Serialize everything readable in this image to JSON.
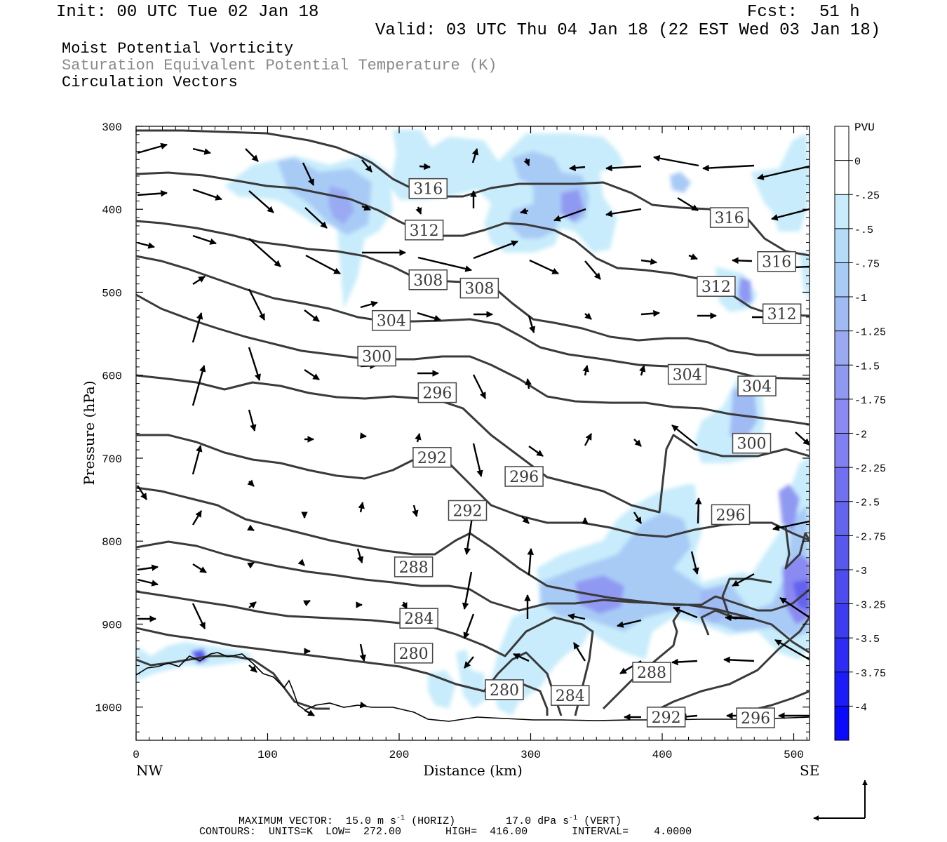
{
  "header": {
    "init": "Init: 00 UTC Tue 02 Jan 18",
    "fcst_label": "Fcst:",
    "fcst_value": "51 h",
    "valid": "Valid: 03 UTC Thu 04 Jan 18 (22 EST Wed 03 Jan 18)"
  },
  "legend_lines": [
    {
      "text": "Moist Potential Vorticity",
      "color": "#000000"
    },
    {
      "text": "Saturation Equivalent Potential Temperature (K)",
      "color": "#8a8a8a"
    },
    {
      "text": "Circulation Vectors",
      "color": "#000000"
    }
  ],
  "chart_data": {
    "type": "contour",
    "xlabel": "Distance (km)",
    "ylabel": "Pressure (hPa)",
    "xlim": [
      0,
      512
    ],
    "ylim": [
      1040,
      300
    ],
    "x_ticks": [
      "0",
      "100",
      "200",
      "300",
      "400",
      "500"
    ],
    "y_ticks": [
      "300",
      "400",
      "500",
      "600",
      "700",
      "800",
      "900",
      "1000"
    ],
    "x_end_labels": {
      "left": "NW",
      "right": "SE"
    },
    "colorbar": {
      "label": "PVU",
      "levels": [
        "0",
        "-.25",
        "-.5",
        "-.75",
        "-1",
        "-1.25",
        "-1.5",
        "-1.75",
        "-2",
        "-2.25",
        "-2.5",
        "-2.75",
        "-3",
        "-3.25",
        "-3.5",
        "-3.75",
        "-4"
      ],
      "colors": [
        "#ffffff",
        "#c8ecfb",
        "#b4dcf8",
        "#a8cbf6",
        "#a0baf4",
        "#99aaf3",
        "#9099f2",
        "#8a8af2",
        "#8080f2",
        "#7070f0",
        "#6464ef",
        "#5858ee",
        "#4c4cef",
        "#3c3cf0",
        "#2c2cf4",
        "#1c1cf8",
        "#0a0afc"
      ]
    },
    "contour_labels": [
      {
        "text": "316",
        "x": 222,
        "p": 375
      },
      {
        "text": "312",
        "x": 219,
        "p": 425
      },
      {
        "text": "308",
        "x": 222,
        "p": 485
      },
      {
        "text": "308",
        "x": 261,
        "p": 495
      },
      {
        "text": "304",
        "x": 194,
        "p": 534
      },
      {
        "text": "300",
        "x": 183,
        "p": 577
      },
      {
        "text": "296",
        "x": 229,
        "p": 621
      },
      {
        "text": "292",
        "x": 225,
        "p": 699
      },
      {
        "text": "296",
        "x": 295,
        "p": 722
      },
      {
        "text": "292",
        "x": 252,
        "p": 763
      },
      {
        "text": "288",
        "x": 211,
        "p": 831
      },
      {
        "text": "284",
        "x": 215,
        "p": 893
      },
      {
        "text": "280",
        "x": 211,
        "p": 935
      },
      {
        "text": "280",
        "x": 280,
        "p": 979
      },
      {
        "text": "284",
        "x": 330,
        "p": 986
      },
      {
        "text": "288",
        "x": 392,
        "p": 958
      },
      {
        "text": "292",
        "x": 403,
        "p": 1012
      },
      {
        "text": "296",
        "x": 471,
        "p": 1013
      },
      {
        "text": "316",
        "x": 451,
        "p": 410
      },
      {
        "text": "316",
        "x": 487,
        "p": 463
      },
      {
        "text": "312",
        "x": 441,
        "p": 493
      },
      {
        "text": "312",
        "x": 491,
        "p": 526
      },
      {
        "text": "304",
        "x": 419,
        "p": 599
      },
      {
        "text": "304",
        "x": 472,
        "p": 613
      },
      {
        "text": "300",
        "x": 468,
        "p": 682
      },
      {
        "text": "296",
        "x": 452,
        "p": 768
      }
    ]
  },
  "footer": {
    "line1_parts": [
      "MAXIMUM VECTOR:  15.0 m s",
      "-1",
      " (HORIZ)        17.0 dPa s",
      "-1",
      " (VERT)"
    ],
    "line2": "CONTOURS:  UNITS=K  LOW=  272.00       HIGH=  416.00       INTERVAL=    4.0000"
  }
}
